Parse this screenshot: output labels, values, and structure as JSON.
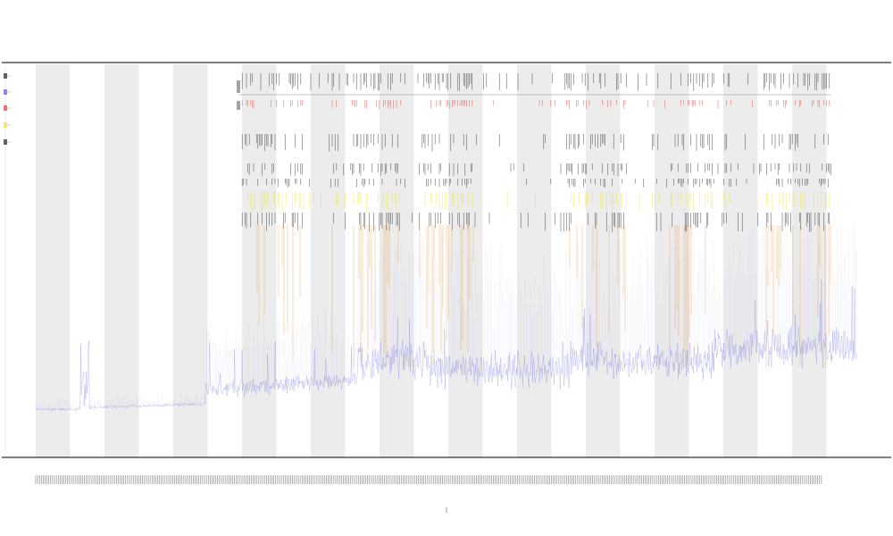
{
  "chart_data": {
    "type": "line",
    "title": "",
    "subtitle_1": "",
    "subtitle_2": "",
    "xlabel": "",
    "ylabel": "",
    "grid": false,
    "legend_placement": "left",
    "colors": {
      "signal": "#5a5ae0",
      "band_shade": "#ececec",
      "orange_events": "#f08a2a",
      "yellow_events": "#e8e23a",
      "red_events": "#e23a3a",
      "black_events": "#222222",
      "axis": "#333333"
    },
    "series": [
      {
        "name": "",
        "color": "#5a5ae0",
        "values": []
      }
    ],
    "event_tracks": [
      {
        "name": "",
        "color": "#222222"
      },
      {
        "name": "",
        "color": "#e23a3a"
      },
      {
        "name": "",
        "color": "#222222"
      },
      {
        "name": "",
        "color": "#222222"
      },
      {
        "name": "",
        "color": "#222222"
      },
      {
        "name": "",
        "color": "#e8e23a"
      },
      {
        "name": "",
        "color": "#222222"
      },
      {
        "name": "",
        "color": "#f08a2a"
      }
    ]
  }
}
